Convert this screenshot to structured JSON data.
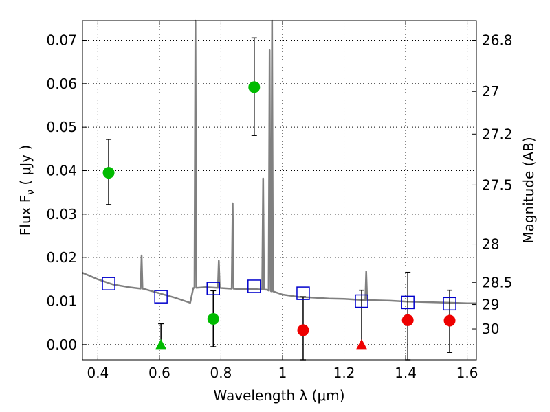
{
  "chart_data": {
    "type": "scatter",
    "xlabel": "Wavelength  λ (μm)",
    "ylabel": "Flux  F",
    "ylabel_sub": "ν",
    "ylabel_units": " ( μJy )",
    "y2label": "Magnitude (AB)",
    "xlim": [
      0.35,
      1.63
    ],
    "ylim": [
      -0.0035,
      0.0745
    ],
    "grid": true,
    "x_ticks": [
      0.4,
      0.6,
      0.8,
      1.0,
      1.2,
      1.4,
      1.6
    ],
    "x_tick_labels": [
      "0.4",
      "0.6",
      "0.8",
      "1",
      "1.2",
      "1.4",
      "1.6"
    ],
    "y_ticks": [
      0.0,
      0.01,
      0.02,
      0.03,
      0.04,
      0.05,
      0.06,
      0.07
    ],
    "y_tick_labels": [
      "0.00",
      "0.01",
      "0.02",
      "0.03",
      "0.04",
      "0.05",
      "0.06",
      "0.07"
    ],
    "y2_ticks": [
      {
        "label": "26.8",
        "flux": 0.07
      },
      {
        "label": "27",
        "flux": 0.0582
      },
      {
        "label": "27.2",
        "flux": 0.0484
      },
      {
        "label": "27.5",
        "flux": 0.0367
      },
      {
        "label": "28",
        "flux": 0.0231
      },
      {
        "label": "28.5",
        "flux": 0.0143
      },
      {
        "label": "29",
        "flux": 0.0092
      },
      {
        "label": "30",
        "flux": 0.0036
      }
    ],
    "colors": {
      "spectrum": "#808080",
      "detection_green": "#00bb00",
      "detection_red": "#ee0000",
      "model_box": "#0000cc",
      "errorbar": "#000000",
      "grid": "#000000"
    },
    "spectrum": {
      "continuum": [
        [
          0.35,
          0.0165
        ],
        [
          0.4,
          0.015
        ],
        [
          0.45,
          0.0138
        ],
        [
          0.5,
          0.0132
        ],
        [
          0.55,
          0.0128
        ],
        [
          0.6,
          0.0118
        ],
        [
          0.65,
          0.0108
        ],
        [
          0.7,
          0.0096
        ],
        [
          0.71,
          0.013
        ],
        [
          0.75,
          0.0132
        ],
        [
          0.8,
          0.013
        ],
        [
          0.85,
          0.0128
        ],
        [
          0.9,
          0.0128
        ],
        [
          0.95,
          0.0126
        ],
        [
          1.0,
          0.0115
        ],
        [
          1.05,
          0.011
        ],
        [
          1.1,
          0.0108
        ],
        [
          1.15,
          0.0106
        ],
        [
          1.2,
          0.0105
        ],
        [
          1.25,
          0.0103
        ],
        [
          1.3,
          0.0102
        ],
        [
          1.35,
          0.0101
        ],
        [
          1.4,
          0.0099
        ],
        [
          1.45,
          0.0098
        ],
        [
          1.5,
          0.0097
        ],
        [
          1.55,
          0.0096
        ],
        [
          1.6,
          0.0095
        ],
        [
          1.63,
          0.0095
        ]
      ],
      "lines": [
        {
          "x": 0.542,
          "peak": 0.0205
        },
        {
          "x": 0.717,
          "peak": 0.0745
        },
        {
          "x": 0.793,
          "peak": 0.0193
        },
        {
          "x": 0.838,
          "peak": 0.0325
        },
        {
          "x": 0.937,
          "peak": 0.0382
        },
        {
          "x": 0.958,
          "peak": 0.0677
        },
        {
          "x": 0.966,
          "peak": 0.0745
        },
        {
          "x": 1.272,
          "peak": 0.0168
        }
      ]
    },
    "series": [
      {
        "marker": "circle",
        "color": "#00bb00",
        "points": [
          {
            "x": 0.435,
            "y": 0.0395,
            "lo": 0.0322,
            "hi": 0.0472
          },
          {
            "x": 0.775,
            "y": 0.0059,
            "lo": -0.0005,
            "hi": 0.0124
          },
          {
            "x": 0.908,
            "y": 0.0592,
            "lo": 0.0481,
            "hi": 0.0705
          }
        ]
      },
      {
        "marker": "circle",
        "color": "#ee0000",
        "points": [
          {
            "x": 1.067,
            "y": 0.0033,
            "lo": -0.0035,
            "hi": 0.011
          },
          {
            "x": 1.407,
            "y": 0.0056,
            "lo": -0.0035,
            "hi": 0.0166
          },
          {
            "x": 1.543,
            "y": 0.0055,
            "lo": -0.0018,
            "hi": 0.0125
          }
        ]
      },
      {
        "marker": "triangle",
        "color": "#00bb00",
        "points": [
          {
            "x": 0.605,
            "y": 0.0,
            "lo": 0.0,
            "hi": 0.0048
          }
        ]
      },
      {
        "marker": "triangle",
        "color": "#ee0000",
        "points": [
          {
            "x": 1.257,
            "y": 0.0,
            "lo": 0.0,
            "hi": 0.0125
          }
        ]
      },
      {
        "marker": "square",
        "color": "#0000cc",
        "points": [
          {
            "x": 0.435,
            "y": 0.014
          },
          {
            "x": 0.605,
            "y": 0.011
          },
          {
            "x": 0.775,
            "y": 0.0129
          },
          {
            "x": 0.908,
            "y": 0.0134
          },
          {
            "x": 1.067,
            "y": 0.0118
          },
          {
            "x": 1.257,
            "y": 0.01
          },
          {
            "x": 1.407,
            "y": 0.0097
          },
          {
            "x": 1.543,
            "y": 0.0094
          }
        ]
      }
    ]
  }
}
